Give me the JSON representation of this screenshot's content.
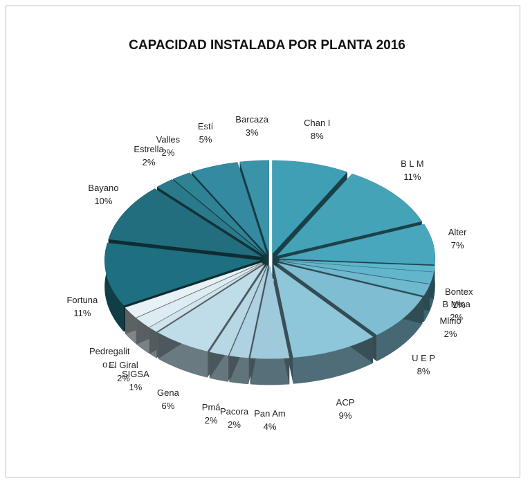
{
  "chart_data": {
    "type": "pie3d",
    "title": "CAPACIDAD INSTALADA POR PLANTA 2016",
    "categories": [
      "Chan I",
      "B L M",
      "Alter",
      "Bontex",
      "B Mina",
      "Mlirio",
      "U E P",
      "ACP",
      "Pan Am",
      "Pacora",
      "Pmá",
      "Gena",
      "SIGSA",
      "El Giral",
      "Pedregalito…",
      "Fortuna",
      "Bayano",
      "Estrella",
      "Valles",
      "Estí",
      "Barcaza"
    ],
    "values": [
      8,
      11,
      7,
      1,
      2,
      2,
      8,
      9,
      4,
      2,
      2,
      6,
      1,
      2,
      2,
      11,
      10,
      2,
      2,
      5,
      3
    ],
    "value_labels": [
      "8%",
      "11%",
      "7%",
      "1%",
      "2%",
      "2%",
      "8%",
      "9%",
      "4%",
      "2%",
      "2%",
      "6%",
      "1%",
      "2%",
      null,
      "11%",
      "10%",
      "2%",
      "2%",
      "5%",
      "3%"
    ],
    "colors": [
      "#3f9fb5",
      "#45a3b8",
      "#48a7bd",
      "#5bb7cc",
      "#63b5cc",
      "#6fb9cf",
      "#7ebdd2",
      "#8ec6da",
      "#9fcadb",
      "#aed2e1",
      "#b7d7e4",
      "#bfdde8",
      "#cfe4ec",
      "#dcecf2",
      "#e8f2f6",
      "#1e6f80",
      "#236e7e",
      "#2a7a8b",
      "#2f8294",
      "#348aa0",
      "#3a93a8"
    ]
  }
}
